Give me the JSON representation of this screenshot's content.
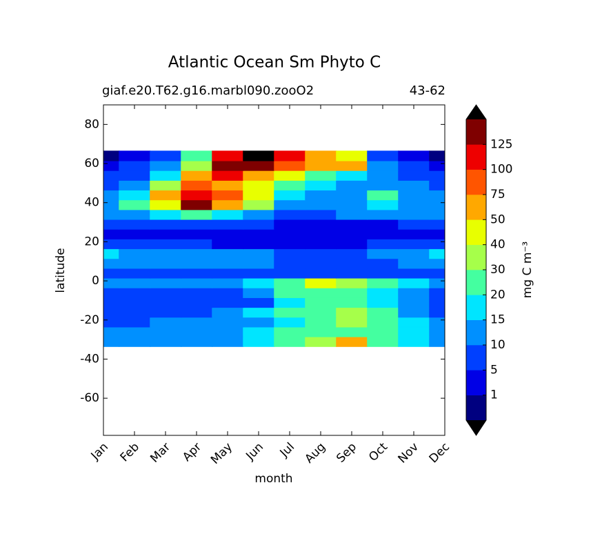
{
  "chart_data": {
    "type": "contourf",
    "title": "Atlantic Ocean Sm Phyto C",
    "subtitle_left": "giaf.e20.T62.g16.marbl090.zooO2",
    "subtitle_right": "43-62",
    "xlabel": "month",
    "ylabel": "latitude",
    "colorbar_label": "mg C m⁻³",
    "categories": [
      "Jan",
      "Feb",
      "Mar",
      "Apr",
      "May",
      "Jun",
      "Jul",
      "Aug",
      "Sep",
      "Oct",
      "Nov",
      "Dec"
    ],
    "ylim": [
      -79,
      90
    ],
    "yticks": [
      -60,
      -40,
      -20,
      0,
      20,
      40,
      60,
      80
    ],
    "y": [
      -31,
      -26,
      -21,
      -16,
      -11,
      -6,
      -1,
      4,
      9,
      14,
      19,
      24,
      29,
      34,
      39,
      44,
      49,
      54,
      59,
      64
    ],
    "z": [
      [
        12,
        12,
        12,
        12,
        12,
        15,
        20,
        30,
        50,
        25,
        15,
        12
      ],
      [
        10,
        10,
        12,
        12,
        12,
        15,
        20,
        25,
        25,
        20,
        15,
        12
      ],
      [
        8,
        8,
        10,
        10,
        10,
        12,
        15,
        25,
        30,
        20,
        15,
        10
      ],
      [
        5,
        5,
        5,
        8,
        10,
        15,
        20,
        25,
        30,
        20,
        10,
        5
      ],
      [
        5,
        5,
        5,
        5,
        5,
        8,
        15,
        20,
        25,
        15,
        10,
        5
      ],
      [
        5,
        5,
        5,
        5,
        8,
        12,
        20,
        25,
        20,
        15,
        10,
        5
      ],
      [
        10,
        10,
        10,
        10,
        12,
        15,
        25,
        40,
        35,
        25,
        15,
        10
      ],
      [
        8,
        8,
        8,
        8,
        8,
        8,
        8,
        8,
        8,
        8,
        8,
        8
      ],
      [
        12,
        12,
        10,
        10,
        10,
        10,
        8,
        8,
        8,
        8,
        10,
        12
      ],
      [
        15,
        12,
        12,
        12,
        12,
        10,
        8,
        8,
        8,
        10,
        12,
        15
      ],
      [
        6,
        6,
        5,
        5,
        4,
        4,
        4,
        4,
        4,
        5,
        6,
        6
      ],
      [
        4,
        4,
        4,
        3,
        3,
        3,
        3,
        3,
        3,
        3,
        4,
        4
      ],
      [
        5,
        5,
        5,
        5,
        5,
        5,
        4,
        4,
        4,
        4,
        5,
        5
      ],
      [
        10,
        12,
        15,
        20,
        15,
        10,
        8,
        8,
        10,
        10,
        10,
        10
      ],
      [
        12,
        20,
        40,
        130,
        70,
        30,
        12,
        10,
        10,
        15,
        12,
        10
      ],
      [
        10,
        15,
        50,
        110,
        80,
        40,
        15,
        12,
        12,
        20,
        12,
        10
      ],
      [
        8,
        12,
        30,
        80,
        70,
        40,
        25,
        15,
        12,
        10,
        10,
        8
      ],
      [
        5,
        8,
        15,
        50,
        110,
        70,
        40,
        25,
        18,
        10,
        8,
        5
      ],
      [
        3,
        5,
        10,
        30,
        130,
        140,
        80,
        60,
        60,
        12,
        5,
        2
      ],
      [
        0.5,
        3,
        8,
        20,
        100,
        160,
        100,
        60,
        40,
        8,
        3,
        0.5
      ]
    ],
    "levels": [
      0,
      1,
      5,
      10,
      15,
      20,
      30,
      40,
      50,
      75,
      100,
      125,
      150
    ],
    "colors": [
      "#000080",
      "#0000e6",
      "#0040ff",
      "#0090ff",
      "#00e5ff",
      "#44ffa0",
      "#a6ff4a",
      "#e8ff00",
      "#ffa800",
      "#ff5500",
      "#ee0000",
      "#7f0000"
    ],
    "extend_color": "#000000"
  }
}
